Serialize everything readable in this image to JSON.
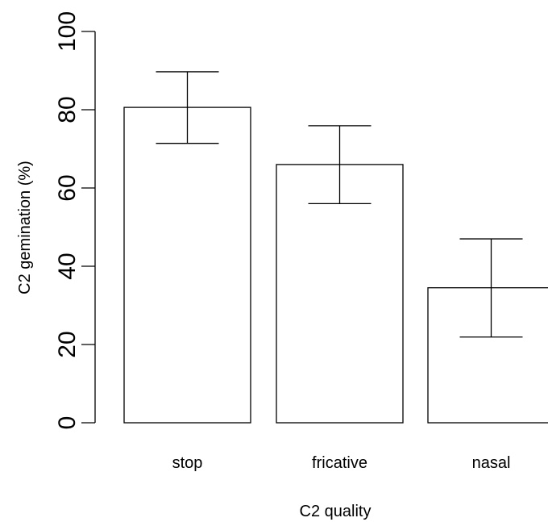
{
  "chart_data": {
    "type": "bar",
    "categories": [
      "stop",
      "fricative",
      "nasal"
    ],
    "values": [
      80.6,
      66.0,
      34.5
    ],
    "error_bars": {
      "lower": [
        71.4,
        56.0,
        21.9
      ],
      "upper": [
        89.7,
        75.9,
        47.0
      ]
    },
    "xlabel": "C2 quality",
    "ylabel": "C2 gemination (%)",
    "ylim": [
      0,
      100
    ],
    "yticks": [
      "0",
      "20",
      "40",
      "60",
      "80",
      "100"
    ],
    "grid": false,
    "legend": "none",
    "colors": {
      "bar_fill": "#ffffff",
      "stroke": "#000000"
    }
  }
}
